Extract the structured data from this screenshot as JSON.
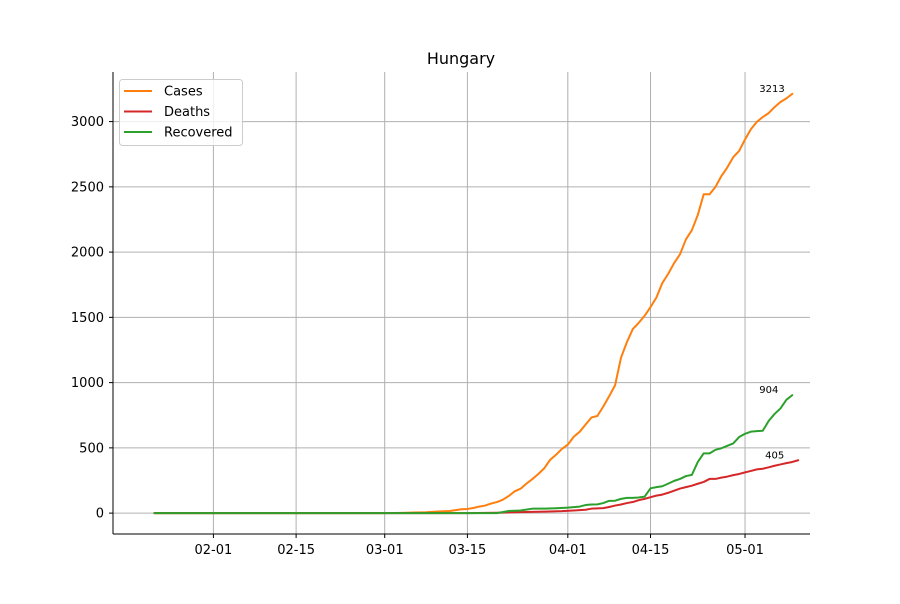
{
  "chart_data": {
    "type": "line",
    "title": "Hungary",
    "xlabel": "",
    "ylabel": "",
    "x_start": "2020-01-22",
    "x_end": "2020-05-08",
    "xlim": [
      "2020-01-15",
      "2020-05-12"
    ],
    "ylim": [
      -160,
      3380
    ],
    "x_ticks": [
      {
        "date": "2020-02-01",
        "label": "02-01"
      },
      {
        "date": "2020-02-15",
        "label": "02-15"
      },
      {
        "date": "2020-03-01",
        "label": "03-01"
      },
      {
        "date": "2020-03-15",
        "label": "03-15"
      },
      {
        "date": "2020-04-01",
        "label": "04-01"
      },
      {
        "date": "2020-04-15",
        "label": "04-15"
      },
      {
        "date": "2020-05-01",
        "label": "05-01"
      }
    ],
    "y_ticks": [
      0,
      500,
      1000,
      1500,
      2000,
      2500,
      3000
    ],
    "grid": true,
    "legend_position": "top-left",
    "series": [
      {
        "name": "Cases",
        "color": "#ff7f0e",
        "end_label": "3213",
        "points": [
          [
            "2020-01-22",
            0
          ],
          [
            "2020-03-01",
            0
          ],
          [
            "2020-03-04",
            2
          ],
          [
            "2020-03-06",
            5
          ],
          [
            "2020-03-08",
            7
          ],
          [
            "2020-03-10",
            12
          ],
          [
            "2020-03-12",
            16
          ],
          [
            "2020-03-14",
            30
          ],
          [
            "2020-03-15",
            32
          ],
          [
            "2020-03-16",
            39
          ],
          [
            "2020-03-17",
            50
          ],
          [
            "2020-03-18",
            58
          ],
          [
            "2020-03-19",
            73
          ],
          [
            "2020-03-20",
            85
          ],
          [
            "2020-03-21",
            103
          ],
          [
            "2020-03-22",
            131
          ],
          [
            "2020-03-23",
            167
          ],
          [
            "2020-03-24",
            187
          ],
          [
            "2020-03-25",
            226
          ],
          [
            "2020-03-26",
            261
          ],
          [
            "2020-03-27",
            300
          ],
          [
            "2020-03-28",
            343
          ],
          [
            "2020-03-29",
            408
          ],
          [
            "2020-03-30",
            447
          ],
          [
            "2020-03-31",
            492
          ],
          [
            "2020-04-01",
            525
          ],
          [
            "2020-04-02",
            585
          ],
          [
            "2020-04-03",
            623
          ],
          [
            "2020-04-04",
            678
          ],
          [
            "2020-04-05",
            733
          ],
          [
            "2020-04-06",
            744
          ],
          [
            "2020-04-07",
            817
          ],
          [
            "2020-04-08",
            895
          ],
          [
            "2020-04-09",
            980
          ],
          [
            "2020-04-10",
            1190
          ],
          [
            "2020-04-11",
            1310
          ],
          [
            "2020-04-12",
            1410
          ],
          [
            "2020-04-13",
            1458
          ],
          [
            "2020-04-14",
            1512
          ],
          [
            "2020-04-15",
            1579
          ],
          [
            "2020-04-16",
            1652
          ],
          [
            "2020-04-17",
            1763
          ],
          [
            "2020-04-18",
            1834
          ],
          [
            "2020-04-19",
            1916
          ],
          [
            "2020-04-20",
            1984
          ],
          [
            "2020-04-21",
            2098
          ],
          [
            "2020-04-22",
            2168
          ],
          [
            "2020-04-23",
            2284
          ],
          [
            "2020-04-24",
            2443
          ],
          [
            "2020-04-25",
            2443
          ],
          [
            "2020-04-26",
            2500
          ],
          [
            "2020-04-27",
            2583
          ],
          [
            "2020-04-28",
            2649
          ],
          [
            "2020-04-29",
            2727
          ],
          [
            "2020-04-30",
            2775
          ],
          [
            "2020-05-01",
            2863
          ],
          [
            "2020-05-02",
            2942
          ],
          [
            "2020-05-03",
            2998
          ],
          [
            "2020-05-04",
            3035
          ],
          [
            "2020-05-05",
            3065
          ],
          [
            "2020-05-06",
            3111
          ],
          [
            "2020-05-07",
            3150
          ],
          [
            "2020-05-08",
            3178
          ],
          [
            "2020-05-09",
            3213
          ]
        ]
      },
      {
        "name": "Deaths",
        "color": "#d62728",
        "end_label": "405",
        "points": [
          [
            "2020-01-22",
            0
          ],
          [
            "2020-03-15",
            0
          ],
          [
            "2020-03-20",
            3
          ],
          [
            "2020-03-22",
            6
          ],
          [
            "2020-03-25",
            9
          ],
          [
            "2020-03-28",
            11
          ],
          [
            "2020-03-31",
            15
          ],
          [
            "2020-04-02",
            20
          ],
          [
            "2020-04-04",
            26
          ],
          [
            "2020-04-05",
            34
          ],
          [
            "2020-04-07",
            38
          ],
          [
            "2020-04-08",
            47
          ],
          [
            "2020-04-09",
            58
          ],
          [
            "2020-04-10",
            66
          ],
          [
            "2020-04-11",
            77
          ],
          [
            "2020-04-12",
            85
          ],
          [
            "2020-04-13",
            99
          ],
          [
            "2020-04-14",
            109
          ],
          [
            "2020-04-15",
            122
          ],
          [
            "2020-04-16",
            134
          ],
          [
            "2020-04-17",
            142
          ],
          [
            "2020-04-18",
            156
          ],
          [
            "2020-04-19",
            172
          ],
          [
            "2020-04-20",
            188
          ],
          [
            "2020-04-21",
            199
          ],
          [
            "2020-04-22",
            210
          ],
          [
            "2020-04-23",
            225
          ],
          [
            "2020-04-24",
            239
          ],
          [
            "2020-04-25",
            262
          ],
          [
            "2020-04-26",
            262
          ],
          [
            "2020-04-27",
            272
          ],
          [
            "2020-04-28",
            280
          ],
          [
            "2020-04-29",
            291
          ],
          [
            "2020-04-30",
            300
          ],
          [
            "2020-05-01",
            312
          ],
          [
            "2020-05-02",
            323
          ],
          [
            "2020-05-03",
            335
          ],
          [
            "2020-05-04",
            340
          ],
          [
            "2020-05-05",
            351
          ],
          [
            "2020-05-06",
            363
          ],
          [
            "2020-05-07",
            373
          ],
          [
            "2020-05-08",
            383
          ],
          [
            "2020-05-09",
            392
          ],
          [
            "2020-05-10",
            405
          ]
        ]
      },
      {
        "name": "Recovered",
        "color": "#2ca02c",
        "end_label": "904",
        "points": [
          [
            "2020-01-22",
            0
          ],
          [
            "2020-03-20",
            0
          ],
          [
            "2020-03-22",
            16
          ],
          [
            "2020-03-24",
            20
          ],
          [
            "2020-03-26",
            34
          ],
          [
            "2020-03-28",
            34
          ],
          [
            "2020-03-30",
            37
          ],
          [
            "2020-04-01",
            42
          ],
          [
            "2020-04-03",
            50
          ],
          [
            "2020-04-04",
            62
          ],
          [
            "2020-04-05",
            66
          ],
          [
            "2020-04-06",
            67
          ],
          [
            "2020-04-07",
            77
          ],
          [
            "2020-04-08",
            94
          ],
          [
            "2020-04-09",
            95
          ],
          [
            "2020-04-10",
            109
          ],
          [
            "2020-04-11",
            117
          ],
          [
            "2020-04-12",
            117
          ],
          [
            "2020-04-13",
            120
          ],
          [
            "2020-04-14",
            126
          ],
          [
            "2020-04-15",
            190
          ],
          [
            "2020-04-16",
            199
          ],
          [
            "2020-04-17",
            206
          ],
          [
            "2020-04-18",
            226
          ],
          [
            "2020-04-19",
            247
          ],
          [
            "2020-04-20",
            262
          ],
          [
            "2020-04-21",
            284
          ],
          [
            "2020-04-22",
            293
          ],
          [
            "2020-04-23",
            391
          ],
          [
            "2020-04-24",
            458
          ],
          [
            "2020-04-25",
            458
          ],
          [
            "2020-04-26",
            485
          ],
          [
            "2020-04-27",
            497
          ],
          [
            "2020-04-28",
            516
          ],
          [
            "2020-04-29",
            534
          ],
          [
            "2020-04-30",
            583
          ],
          [
            "2020-05-01",
            608
          ],
          [
            "2020-05-02",
            624
          ],
          [
            "2020-05-03",
            628
          ],
          [
            "2020-05-04",
            631
          ],
          [
            "2020-05-05",
            706
          ],
          [
            "2020-05-06",
            760
          ],
          [
            "2020-05-07",
            802
          ],
          [
            "2020-05-08",
            868
          ],
          [
            "2020-05-09",
            904
          ]
        ]
      }
    ]
  }
}
